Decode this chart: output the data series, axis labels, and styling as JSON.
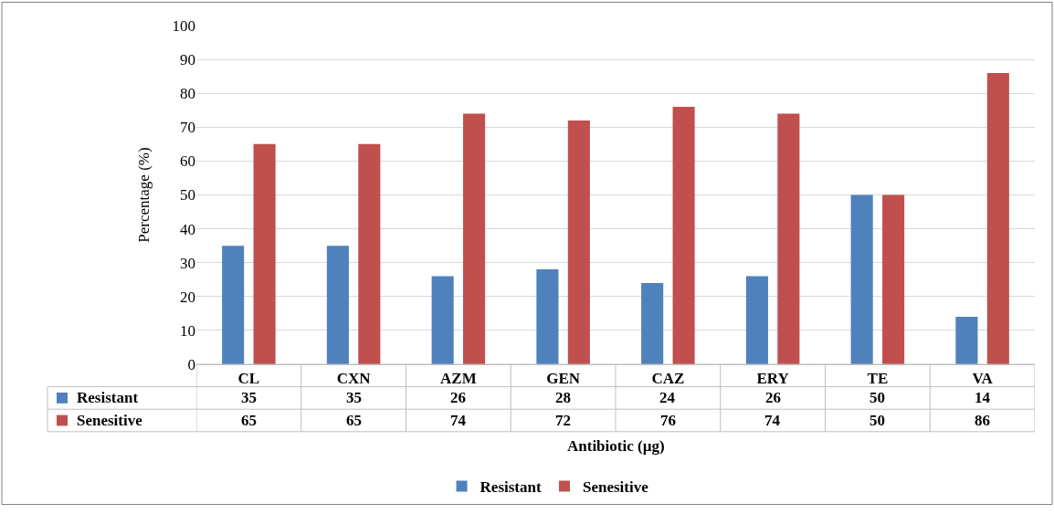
{
  "chart_data": {
    "type": "bar",
    "xlabel": "Antibiotic (µg)",
    "ylabel": "Percentage (%)",
    "categories": [
      "CL",
      "CXN",
      "AZM",
      "GEN",
      "CAZ",
      "ERY",
      "TE",
      "VA"
    ],
    "series": [
      {
        "name": "Resistant",
        "color": "#4f81bd",
        "values": [
          35,
          35,
          26,
          28,
          24,
          26,
          50,
          14
        ]
      },
      {
        "name": "Senesitive",
        "color": "#c0504d",
        "values": [
          65,
          65,
          74,
          72,
          76,
          74,
          50,
          86
        ]
      }
    ],
    "ylim": [
      0,
      100
    ],
    "yticks": [
      0,
      10,
      20,
      30,
      40,
      50,
      60,
      70,
      80,
      90,
      100
    ],
    "grid": "y",
    "legend": "bottom",
    "data_labels": true
  }
}
